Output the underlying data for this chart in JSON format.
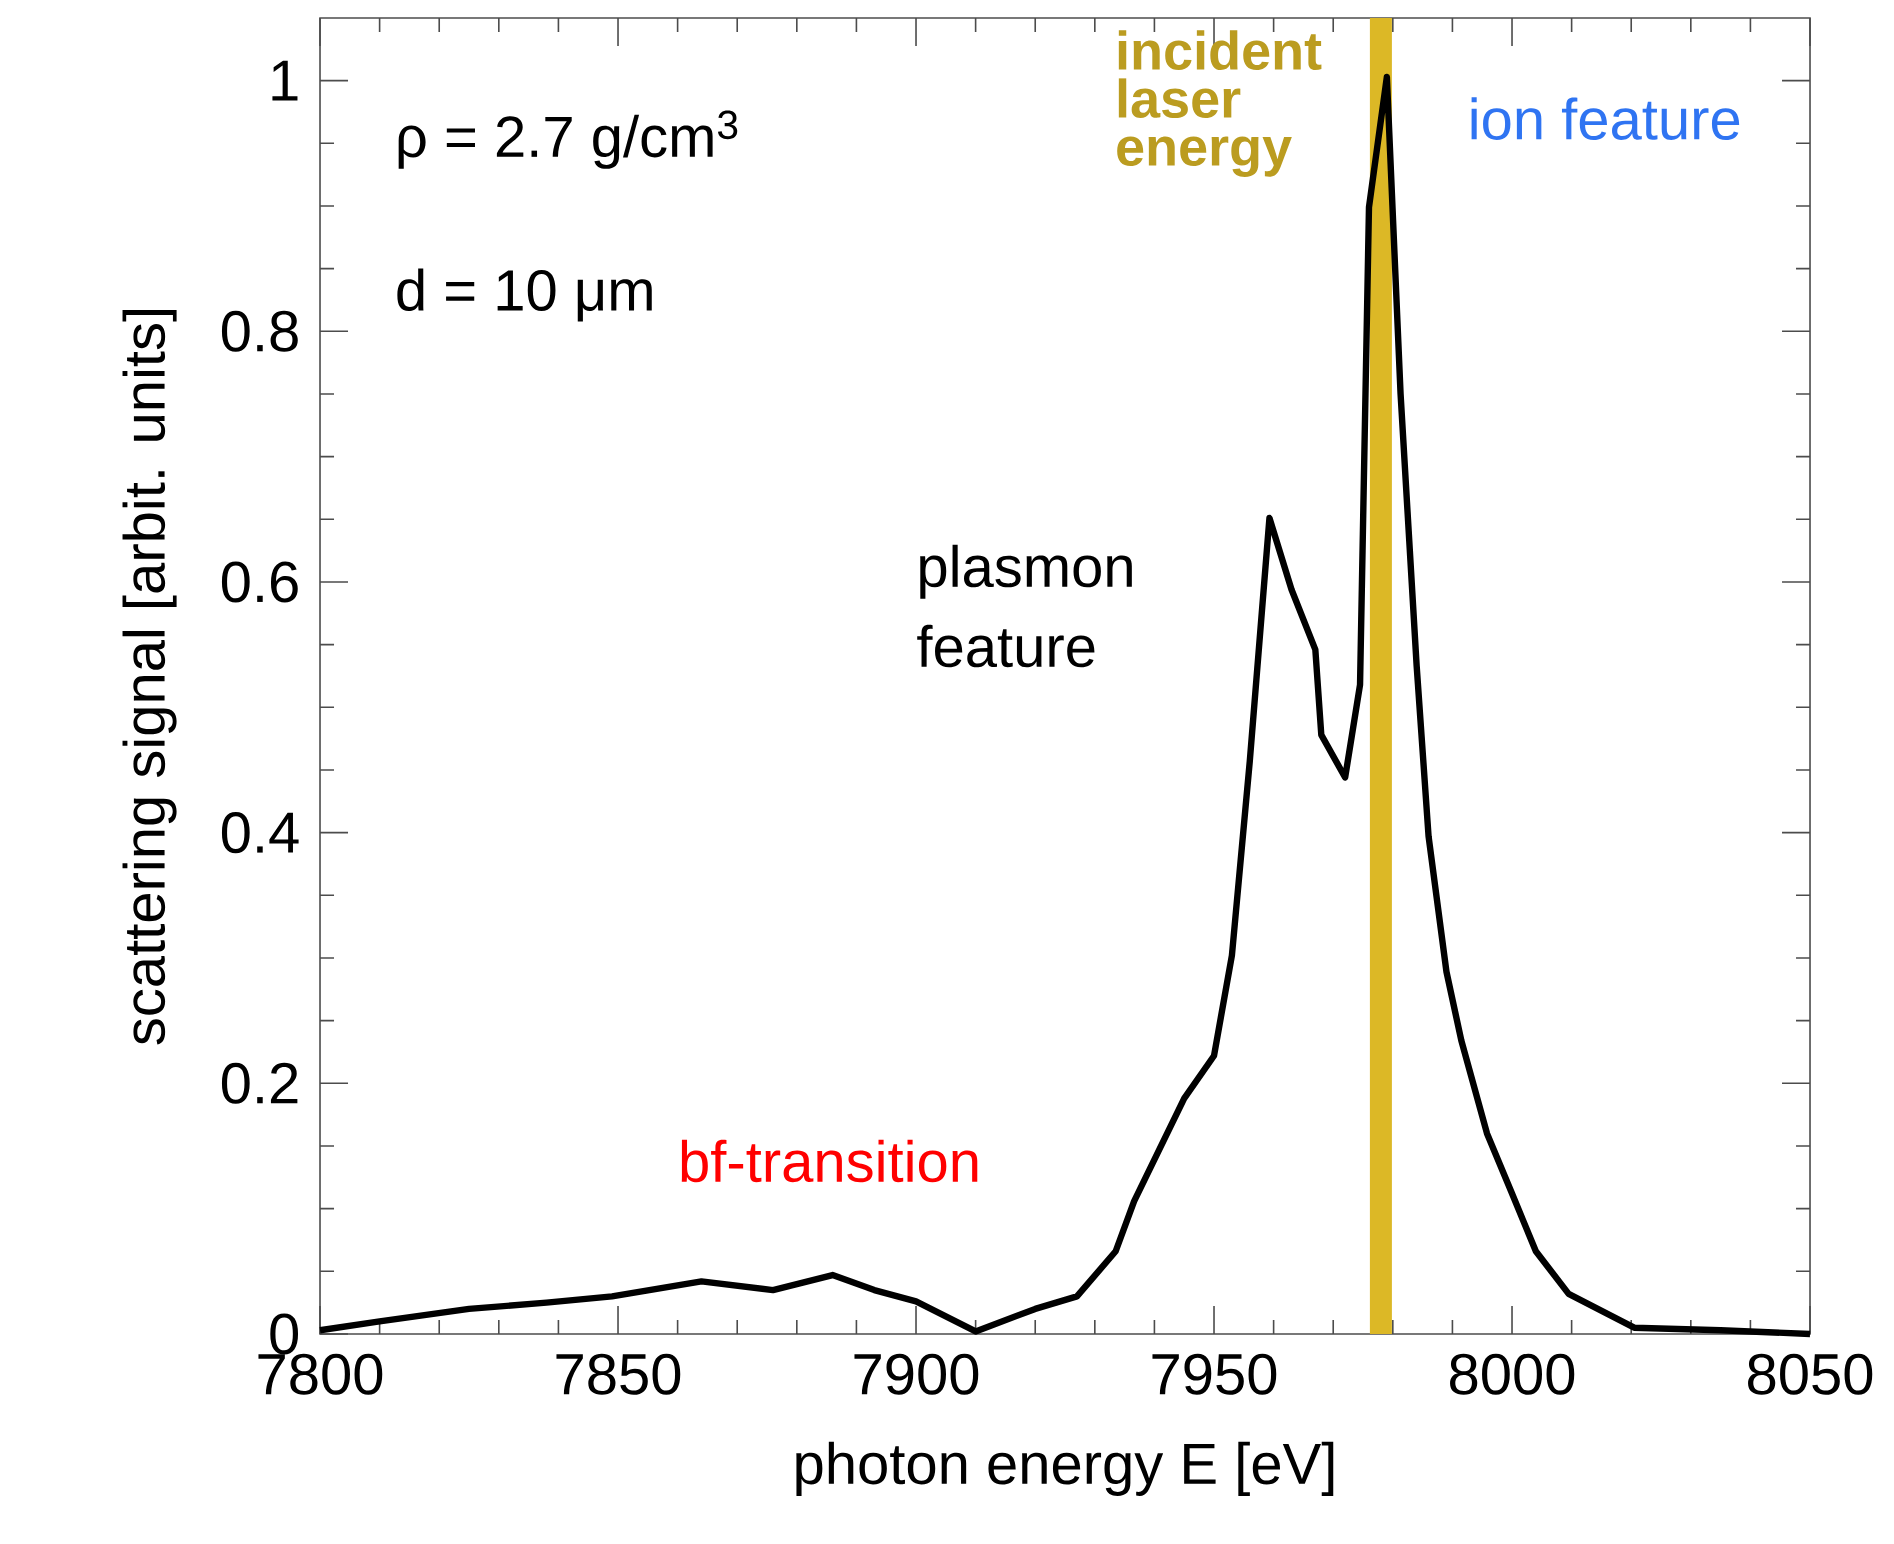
{
  "chart_data": {
    "type": "line",
    "xlabel": "photon energy E [eV]",
    "ylabel": "scattering signal [arbit. units]",
    "xlim": [
      7800,
      8050
    ],
    "ylim": [
      0,
      1.05
    ],
    "xticks": [
      7800,
      7850,
      7900,
      7950,
      8000,
      8050
    ],
    "yticks": [
      0,
      0.2,
      0.4,
      0.6,
      0.8,
      1
    ],
    "grid": false,
    "marker": "none",
    "line_style": "solid",
    "x": [
      7800,
      7810,
      7825,
      7838,
      7849,
      7864,
      7876,
      7886,
      7893,
      7900,
      7910,
      7920,
      7927,
      7933.5,
      7936.6,
      7945,
      7950,
      7953,
      7956,
      7959.3,
      7963,
      7967,
      7968,
      7972,
      7974.5,
      7976,
      7979,
      7981.3,
      7984,
      7986,
      7989,
      7991.5,
      7995.8,
      8000,
      8004,
      8009.5,
      8020.5,
      8035,
      8050
    ],
    "series": [
      {
        "color": "#000000",
        "values": [
          0.003,
          0.01,
          0.02,
          0.025,
          0.03,
          0.042,
          0.035,
          0.047,
          0.035,
          0.026,
          0.002,
          0.02,
          0.03,
          0.066,
          0.106,
          0.188,
          0.222,
          0.302,
          0.457,
          0.651,
          0.594,
          0.546,
          0.478,
          0.444,
          0.518,
          0.899,
          1.003,
          0.75,
          0.533,
          0.397,
          0.289,
          0.234,
          0.16,
          0.112,
          0.066,
          0.032,
          0.005,
          0.003,
          0.0
        ]
      }
    ],
    "ref_lines": [
      {
        "axis": "x",
        "value": 7978,
        "label": "incident laser energy",
        "color": "#dcb826"
      }
    ],
    "annotations": [
      "ρ = 2.7 g/cm$^{3}$",
      "d = 10 μm",
      "plasmon feature",
      "ion feature",
      "bf-transition"
    ]
  }
}
